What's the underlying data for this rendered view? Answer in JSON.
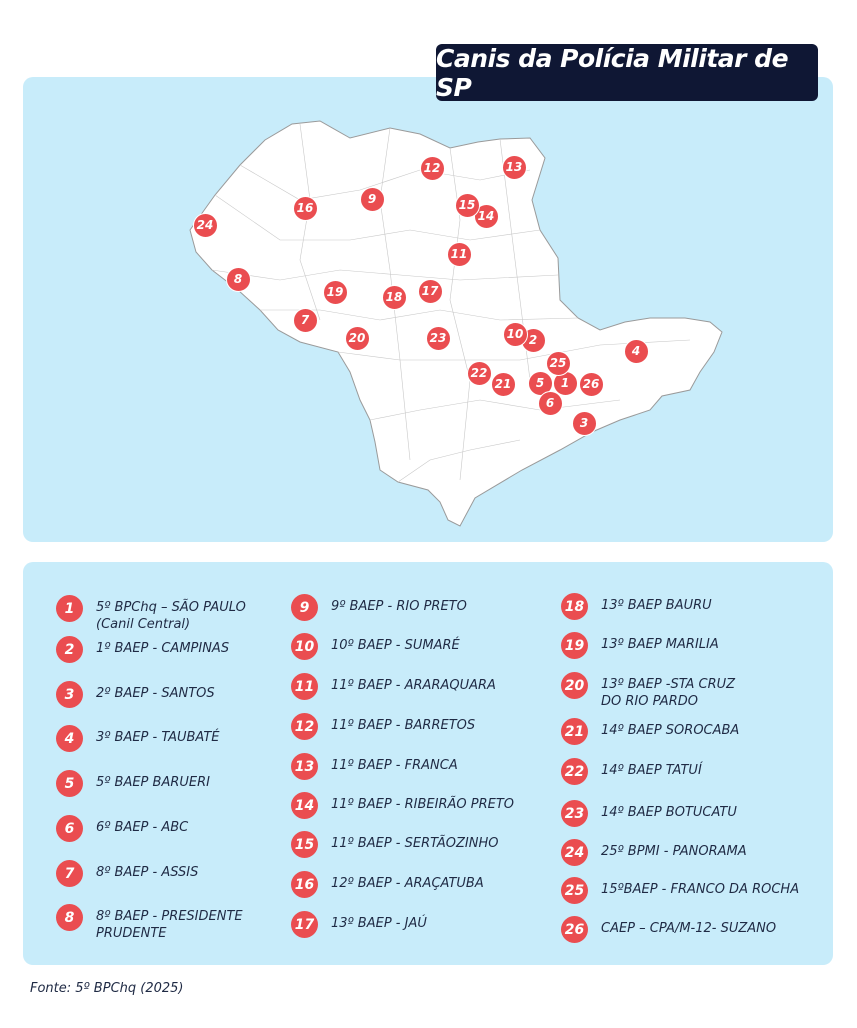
{
  "title": "Canis da Polícia Militar de SP",
  "colors": {
    "panel_bg": "#c8ecfa",
    "marker": "#ea4d50",
    "title_bg": "#0f1734",
    "map_fill": "#ffffff"
  },
  "map": {
    "region": "São Paulo state municipalities",
    "markers": [
      "1",
      "2",
      "3",
      "4",
      "5",
      "6",
      "7",
      "8",
      "9",
      "10",
      "11",
      "12",
      "13",
      "14",
      "15",
      "16",
      "17",
      "18",
      "19",
      "20",
      "21",
      "22",
      "23",
      "24",
      "25",
      "26"
    ]
  },
  "legend": [
    {
      "num": "1",
      "label": "5º BPChq – SÃO PAULO\n(Canil Central)"
    },
    {
      "num": "2",
      "label": "1º BAEP - CAMPINAS"
    },
    {
      "num": "3",
      "label": "2º BAEP - SANTOS"
    },
    {
      "num": "4",
      "label": "3º BAEP - TAUBATÉ"
    },
    {
      "num": "5",
      "label": "5º BAEP BARUERI"
    },
    {
      "num": "6",
      "label": "6º BAEP - ABC"
    },
    {
      "num": "7",
      "label": "8º BAEP - ASSIS"
    },
    {
      "num": "8",
      "label": "8º BAEP - PRESIDENTE\nPRUDENTE"
    },
    {
      "num": "9",
      "label": "9º BAEP - RIO PRETO"
    },
    {
      "num": "10",
      "label": "10º BAEP - SUMARÉ"
    },
    {
      "num": "11",
      "label": "11º BAEP - ARARAQUARA"
    },
    {
      "num": "12",
      "label": "11º BAEP - BARRETOS"
    },
    {
      "num": "13",
      "label": "11º BAEP - FRANCA"
    },
    {
      "num": "14",
      "label": "11º BAEP - RIBEIRÃO PRETO"
    },
    {
      "num": "15",
      "label": "11º BAEP - SERTÃOZINHO"
    },
    {
      "num": "16",
      "label": "12º BAEP - ARAÇATUBA"
    },
    {
      "num": "17",
      "label": "13º BAEP - JAÚ"
    },
    {
      "num": "18",
      "label": "13º BAEP BAURU"
    },
    {
      "num": "19",
      "label": "13º BAEP MARILIA"
    },
    {
      "num": "20",
      "label": "13º BAEP -STA CRUZ\nDO RIO PARDO"
    },
    {
      "num": "21",
      "label": "14º BAEP SOROCABA"
    },
    {
      "num": "22",
      "label": "14º BAEP TATUÍ"
    },
    {
      "num": "23",
      "label": "14º BAEP BOTUCATU"
    },
    {
      "num": "24",
      "label": "25º BPMI - PANORAMA"
    },
    {
      "num": "25",
      "label": "15ºBAEP - FRANCO DA ROCHA"
    },
    {
      "num": "26",
      "label": "CAEP – CPA/M-12- SUZANO"
    }
  ],
  "source": "Fonte: 5º BPChq (2025)"
}
